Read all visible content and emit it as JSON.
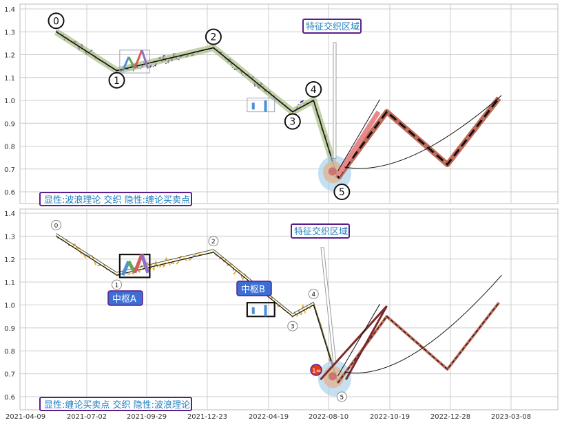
{
  "colors": {
    "grid": "#cccccc",
    "frame": "#bbbbbb",
    "price_top": "#4b1a8c",
    "price_bottom": "#e8a317",
    "wave_band": "#a9bf84",
    "label_text": "#1f7fbf",
    "label_border": "#5a1e8c",
    "zhongshu_box": "#1f5fbf",
    "zhongshu_text": "#ffffff"
  },
  "x_axis": {
    "ticks": [
      "2021-04-09",
      "2021-07-02",
      "2021-09-29",
      "2021-12-23",
      "2022-04-19",
      "2022-08-10",
      "2022-10-19",
      "2022-12-28",
      "2023-03-08"
    ]
  },
  "chart_data": [
    {
      "type": "line",
      "panel": "top",
      "ylim": [
        0.55,
        1.42
      ],
      "yticks": [
        "1.4",
        "1.3",
        "1.2",
        "1.1",
        "1.0",
        "0.9",
        "0.8",
        "0.7",
        "0.6"
      ],
      "corner_label": "显性:波浪理论 交织 隐性:缠论买卖点",
      "feature_label": "特征交织区域",
      "waves": [
        {
          "label": "0",
          "x": 0.5,
          "y": 1.3
        },
        {
          "label": "1",
          "x": 1.5,
          "y": 1.13
        },
        {
          "label": "2",
          "x": 3.1,
          "y": 1.23
        },
        {
          "label": "3",
          "x": 4.4,
          "y": 0.95
        },
        {
          "label": "4",
          "x": 4.75,
          "y": 1.0
        },
        {
          "label": "5",
          "x": 5.15,
          "y": 0.66
        }
      ],
      "projection": [
        {
          "x": 5.15,
          "y": 0.66
        },
        {
          "x": 5.95,
          "y": 0.95
        },
        {
          "x": 6.95,
          "y": 0.72
        },
        {
          "x": 7.8,
          "y": 1.01
        }
      ]
    },
    {
      "type": "line",
      "panel": "bottom",
      "ylim": [
        0.55,
        1.42
      ],
      "yticks": [
        "1.4",
        "1.3",
        "1.2",
        "1.1",
        "1.0",
        "0.9",
        "0.8",
        "0.7",
        "0.6"
      ],
      "corner_label": "显性:缠论买卖点 交织 隐性:波浪理论",
      "feature_label": "特征交织区域",
      "zhongshu_a": "中枢A",
      "zhongshu_b": "中枢B",
      "buy_marker": "1=",
      "waves": [
        {
          "label": "0",
          "x": 0.5,
          "y": 1.3
        },
        {
          "label": "1",
          "x": 1.5,
          "y": 1.13
        },
        {
          "label": "2",
          "x": 3.1,
          "y": 1.23
        },
        {
          "label": "3",
          "x": 4.4,
          "y": 0.95
        },
        {
          "label": "4",
          "x": 4.75,
          "y": 1.0
        },
        {
          "label": "5",
          "x": 5.15,
          "y": 0.66
        }
      ],
      "projection": [
        {
          "x": 5.15,
          "y": 0.66
        },
        {
          "x": 5.95,
          "y": 0.95
        },
        {
          "x": 6.95,
          "y": 0.72
        },
        {
          "x": 7.8,
          "y": 1.01
        }
      ]
    }
  ]
}
